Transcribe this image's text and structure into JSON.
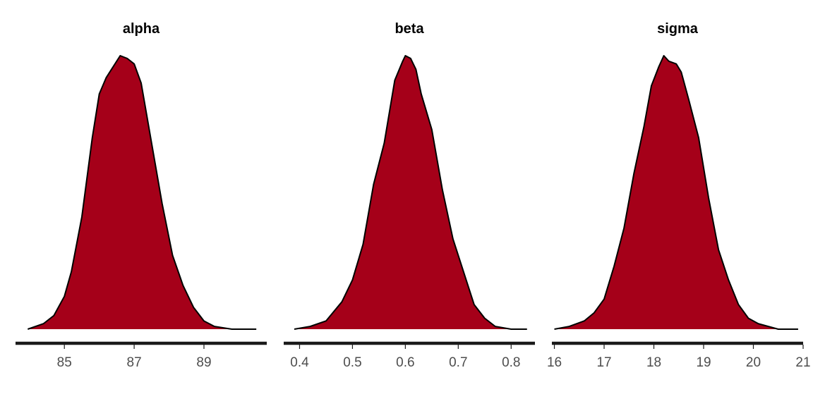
{
  "chart_data": [
    {
      "type": "area",
      "title": "alpha",
      "xlim": [
        83.6,
        90.8
      ],
      "ticks": [
        85,
        87,
        89
      ],
      "fill_color": "#a50019",
      "line_color": "#000000",
      "density": [
        [
          83.95,
          0.0
        ],
        [
          84.4,
          0.02
        ],
        [
          84.7,
          0.05
        ],
        [
          85.0,
          0.12
        ],
        [
          85.2,
          0.21
        ],
        [
          85.5,
          0.41
        ],
        [
          85.8,
          0.7
        ],
        [
          86.0,
          0.86
        ],
        [
          86.2,
          0.92
        ],
        [
          86.4,
          0.96
        ],
        [
          86.6,
          1.0
        ],
        [
          86.8,
          0.99
        ],
        [
          87.0,
          0.97
        ],
        [
          87.2,
          0.9
        ],
        [
          87.5,
          0.68
        ],
        [
          87.8,
          0.46
        ],
        [
          88.1,
          0.27
        ],
        [
          88.4,
          0.16
        ],
        [
          88.7,
          0.08
        ],
        [
          89.0,
          0.03
        ],
        [
          89.3,
          0.01
        ],
        [
          89.8,
          0.0
        ],
        [
          90.5,
          0.0
        ]
      ]
    },
    {
      "type": "area",
      "title": "beta",
      "xlim": [
        0.37,
        0.845
      ],
      "ticks": [
        0.4,
        0.5,
        0.6,
        0.7,
        0.8
      ],
      "tick_labels": [
        "0.4",
        "0.5",
        "0.6",
        "0.7",
        "0.8"
      ],
      "fill_color": "#a50019",
      "line_color": "#000000",
      "density": [
        [
          0.39,
          0.0
        ],
        [
          0.42,
          0.01
        ],
        [
          0.45,
          0.03
        ],
        [
          0.48,
          0.1
        ],
        [
          0.5,
          0.18
        ],
        [
          0.52,
          0.31
        ],
        [
          0.54,
          0.53
        ],
        [
          0.56,
          0.68
        ],
        [
          0.58,
          0.91
        ],
        [
          0.595,
          0.98
        ],
        [
          0.6,
          1.0
        ],
        [
          0.61,
          0.99
        ],
        [
          0.62,
          0.95
        ],
        [
          0.63,
          0.86
        ],
        [
          0.65,
          0.73
        ],
        [
          0.67,
          0.51
        ],
        [
          0.69,
          0.33
        ],
        [
          0.71,
          0.21
        ],
        [
          0.73,
          0.09
        ],
        [
          0.75,
          0.04
        ],
        [
          0.77,
          0.01
        ],
        [
          0.8,
          0.0
        ],
        [
          0.83,
          0.0
        ]
      ]
    },
    {
      "type": "area",
      "title": "sigma",
      "xlim": [
        15.95,
        21.0
      ],
      "ticks": [
        16,
        17,
        18,
        19,
        20,
        21
      ],
      "fill_color": "#a50019",
      "line_color": "#000000",
      "density": [
        [
          16.0,
          0.0
        ],
        [
          16.3,
          0.01
        ],
        [
          16.6,
          0.03
        ],
        [
          16.8,
          0.06
        ],
        [
          17.0,
          0.11
        ],
        [
          17.2,
          0.23
        ],
        [
          17.4,
          0.37
        ],
        [
          17.6,
          0.57
        ],
        [
          17.8,
          0.74
        ],
        [
          17.95,
          0.89
        ],
        [
          18.1,
          0.96
        ],
        [
          18.2,
          1.0
        ],
        [
          18.3,
          0.98
        ],
        [
          18.45,
          0.97
        ],
        [
          18.55,
          0.94
        ],
        [
          18.7,
          0.84
        ],
        [
          18.9,
          0.7
        ],
        [
          19.1,
          0.48
        ],
        [
          19.3,
          0.29
        ],
        [
          19.5,
          0.18
        ],
        [
          19.7,
          0.09
        ],
        [
          19.9,
          0.04
        ],
        [
          20.1,
          0.02
        ],
        [
          20.3,
          0.01
        ],
        [
          20.5,
          0.0
        ],
        [
          20.9,
          0.0
        ]
      ]
    }
  ]
}
